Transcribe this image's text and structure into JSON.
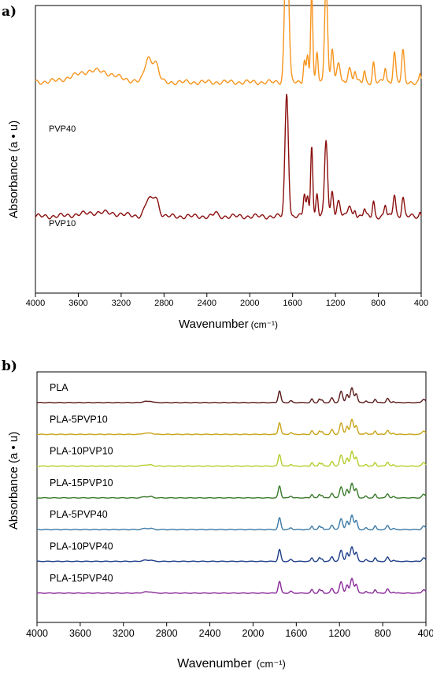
{
  "chart_data": [
    {
      "type": "line",
      "panel": "a)",
      "xlabel": "Wavenumber",
      "xunit": "(cm⁻¹)",
      "ylabel": "Absorbance (a • u)",
      "xlim": [
        4000,
        400
      ],
      "x_reversed": true,
      "xticks": [
        "4000",
        "3600",
        "3200",
        "2800",
        "2400",
        "2000",
        "1600",
        "1200",
        "800",
        "400"
      ],
      "series": [
        {
          "name": "PVP40",
          "color": "#f7941d",
          "baseline": 0.55,
          "peaks": [
            {
              "x": 3450,
              "h": 0.03,
              "w": 180
            },
            {
              "x": 2950,
              "h": 0.06,
              "w": 30
            },
            {
              "x": 2880,
              "h": 0.05,
              "w": 30
            },
            {
              "x": 1655,
              "h": 0.41,
              "w": 18
            },
            {
              "x": 1490,
              "h": 0.06,
              "w": 10
            },
            {
              "x": 1460,
              "h": 0.07,
              "w": 10
            },
            {
              "x": 1422,
              "h": 0.23,
              "w": 10
            },
            {
              "x": 1372,
              "h": 0.08,
              "w": 10
            },
            {
              "x": 1288,
              "h": 0.26,
              "w": 14
            },
            {
              "x": 1230,
              "h": 0.09,
              "w": 12
            },
            {
              "x": 1170,
              "h": 0.05,
              "w": 15
            },
            {
              "x": 1070,
              "h": 0.04,
              "w": 15
            },
            {
              "x": 1018,
              "h": 0.03,
              "w": 10
            },
            {
              "x": 930,
              "h": 0.03,
              "w": 10
            },
            {
              "x": 845,
              "h": 0.05,
              "w": 10
            },
            {
              "x": 735,
              "h": 0.04,
              "w": 10
            },
            {
              "x": 650,
              "h": 0.08,
              "w": 12
            },
            {
              "x": 570,
              "h": 0.08,
              "w": 12
            },
            {
              "x": 410,
              "h": 0.02,
              "w": 8
            }
          ]
        },
        {
          "name": "PVP10",
          "color": "#8b0f0f",
          "baseline": 0.2,
          "peaks": [
            {
              "x": 3400,
              "h": 0.01,
              "w": 180
            },
            {
              "x": 2950,
              "h": 0.04,
              "w": 30
            },
            {
              "x": 2880,
              "h": 0.05,
              "w": 30
            },
            {
              "x": 2320,
              "h": 0.01,
              "w": 15
            },
            {
              "x": 1655,
              "h": 0.32,
              "w": 16
            },
            {
              "x": 1490,
              "h": 0.06,
              "w": 10
            },
            {
              "x": 1460,
              "h": 0.05,
              "w": 10
            },
            {
              "x": 1422,
              "h": 0.19,
              "w": 10
            },
            {
              "x": 1372,
              "h": 0.06,
              "w": 10
            },
            {
              "x": 1288,
              "h": 0.2,
              "w": 14
            },
            {
              "x": 1230,
              "h": 0.07,
              "w": 12
            },
            {
              "x": 1170,
              "h": 0.04,
              "w": 15
            },
            {
              "x": 1070,
              "h": 0.03,
              "w": 15
            },
            {
              "x": 1018,
              "h": 0.02,
              "w": 10
            },
            {
              "x": 930,
              "h": 0.02,
              "w": 10
            },
            {
              "x": 845,
              "h": 0.04,
              "w": 10
            },
            {
              "x": 735,
              "h": 0.03,
              "w": 10
            },
            {
              "x": 650,
              "h": 0.06,
              "w": 12
            },
            {
              "x": 570,
              "h": 0.05,
              "w": 12
            },
            {
              "x": 410,
              "h": 0.01,
              "w": 8
            }
          ]
        }
      ]
    },
    {
      "type": "line",
      "panel": "b)",
      "xlabel": "Wavenumber",
      "xunit": "(cm⁻¹)",
      "ylabel": "Absorbance (a • u)",
      "xlim": [
        4000,
        400
      ],
      "x_reversed": true,
      "xticks": [
        "4000",
        "3600",
        "3200",
        "2800",
        "2400",
        "2000",
        "1600",
        "1200",
        "800",
        "400"
      ],
      "profile": [
        {
          "x": 3000,
          "h": 0.1,
          "w": 25
        },
        {
          "x": 2945,
          "h": 0.1,
          "w": 20
        },
        {
          "x": 1755,
          "h": 1.0,
          "w": 12
        },
        {
          "x": 1650,
          "h": 0.15,
          "w": 12
        },
        {
          "x": 1455,
          "h": 0.3,
          "w": 10
        },
        {
          "x": 1385,
          "h": 0.3,
          "w": 10
        },
        {
          "x": 1360,
          "h": 0.2,
          "w": 8
        },
        {
          "x": 1270,
          "h": 0.4,
          "w": 12
        },
        {
          "x": 1185,
          "h": 0.95,
          "w": 14
        },
        {
          "x": 1130,
          "h": 0.7,
          "w": 12
        },
        {
          "x": 1085,
          "h": 1.25,
          "w": 14
        },
        {
          "x": 1045,
          "h": 0.75,
          "w": 12
        },
        {
          "x": 955,
          "h": 0.15,
          "w": 10
        },
        {
          "x": 870,
          "h": 0.3,
          "w": 10
        },
        {
          "x": 755,
          "h": 0.35,
          "w": 12
        },
        {
          "x": 700,
          "h": 0.1,
          "w": 10
        },
        {
          "x": 420,
          "h": 0.3,
          "w": 15
        }
      ],
      "series": [
        {
          "name": "PLA",
          "color": "#5a1a1a",
          "peak_scale": 1.0
        },
        {
          "name": "PLA-5PVP10",
          "color": "#c8a417",
          "peak_scale": 1.0
        },
        {
          "name": "PLA-10PVP10",
          "color": "#b5cc2a",
          "peak_scale": 1.0
        },
        {
          "name": "PLA-15PVP10",
          "color": "#3a7a2a",
          "peak_scale": 1.0
        },
        {
          "name": "PLA-5PVP40",
          "color": "#3c7aa6",
          "peak_scale": 1.0
        },
        {
          "name": "PLA-10PVP40",
          "color": "#1f3f8a",
          "peak_scale": 1.0
        },
        {
          "name": "PLA-15PVP40",
          "color": "#8a2a9a",
          "peak_scale": 1.0
        }
      ]
    }
  ]
}
